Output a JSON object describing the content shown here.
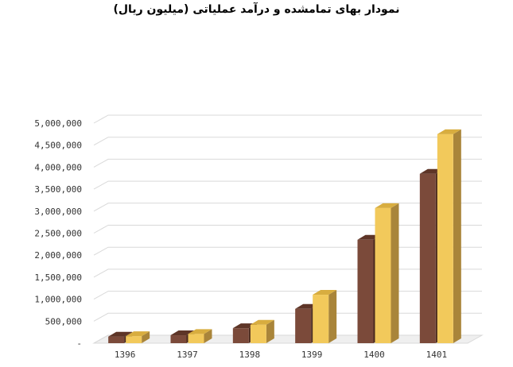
{
  "chart_data": {
    "type": "bar",
    "title": "نمودار بهای تمامشده و درآمد عملیاتی (میلیون ریال)",
    "categories": [
      "1396",
      "1397",
      "1398",
      "1399",
      "1400",
      "1401"
    ],
    "series": [
      {
        "values": [
          150000,
          180000,
          340000,
          780000,
          2350000,
          3850000
        ]
      },
      {
        "values": [
          160000,
          210000,
          420000,
          1100000,
          3070000,
          4750000
        ]
      }
    ],
    "ylim": [
      0,
      5000000
    ],
    "yticks": [
      "-",
      "500,000",
      "1,000,000",
      "1,500,000",
      "2,000,000",
      "2,500,000",
      "3,000,000",
      "3,500,000",
      "4,000,000",
      "4,500,000",
      "5,000,000"
    ],
    "grid": true,
    "legend": "none",
    "colors": {
      "series1_front": "#7b4a3a",
      "series1_top": "#5e3527",
      "series1_side": "#4a2a1e",
      "series2_front": "#f2c95b",
      "series2_top": "#d8ad3f",
      "series2_side": "#a9853a",
      "grid": "#d9d9d9",
      "floor": "#d9d9d9"
    }
  }
}
